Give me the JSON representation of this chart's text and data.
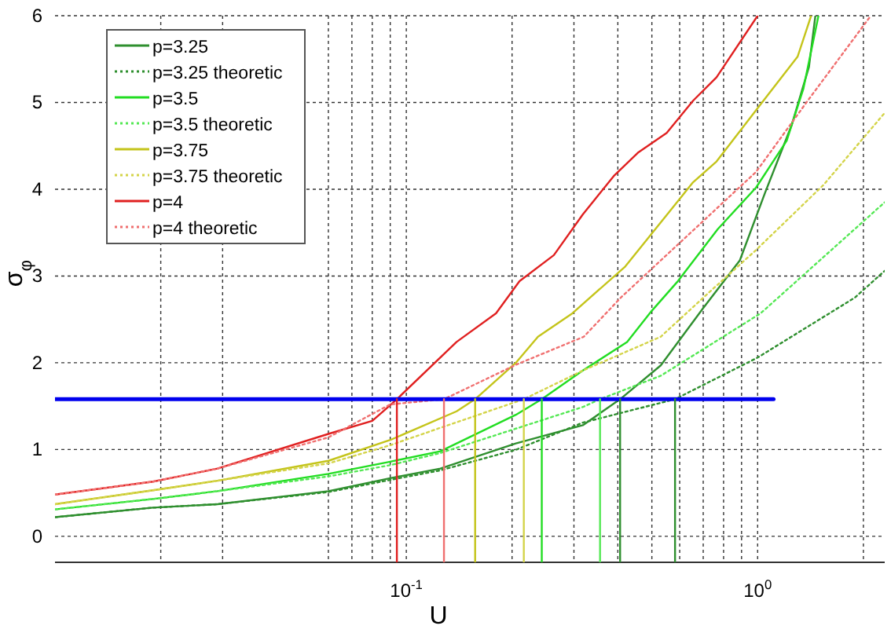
{
  "chart_data": {
    "type": "line",
    "xlabel": "U",
    "ylabel": "σ$_{φ}$",
    "log": "x",
    "grid": true,
    "legend": "top left",
    "xlim": [
      0.01,
      2.3
    ],
    "ylim": [
      -0.3,
      6
    ],
    "xticks": [
      {
        "value": 0.02,
        "label": null
      },
      {
        "value": 0.03,
        "label": null
      },
      {
        "value": 0.06,
        "label": null
      },
      {
        "value": 0.07,
        "label": null
      },
      {
        "value": 0.08,
        "label": null
      },
      {
        "value": 0.09,
        "label": null
      },
      {
        "value": 0.1,
        "label": "10$^{-1}$"
      },
      {
        "value": 0.2,
        "label": null
      },
      {
        "value": 0.3,
        "label": null
      },
      {
        "value": 0.4,
        "label": null
      },
      {
        "value": 0.5,
        "label": null
      },
      {
        "value": 0.6,
        "label": null
      },
      {
        "value": 0.7,
        "label": null
      },
      {
        "value": 0.8,
        "label": null
      },
      {
        "value": 0.9,
        "label": null
      },
      {
        "value": 1,
        "label": "10$^{0}$"
      },
      {
        "value": 2,
        "label": null
      }
    ],
    "yticks": [
      0,
      1,
      2,
      3,
      4,
      5,
      6
    ],
    "series": [
      {
        "name": "p=3.25",
        "color": "#2f8f2f",
        "line_style": "solid",
        "x": [
          0.01,
          0.019,
          0.029,
          0.06,
          0.09,
          0.125,
          0.205,
          0.318,
          0.406,
          0.53,
          0.7,
          0.89,
          1.05,
          1.25,
          1.4,
          1.46
        ],
        "values": [
          0.22,
          0.33,
          0.37,
          0.52,
          0.67,
          0.78,
          1.07,
          1.28,
          1.58,
          1.97,
          2.63,
          3.18,
          3.96,
          4.74,
          5.41,
          6.0
        ]
      },
      {
        "name": "p=3.25 theoretic",
        "color": "#2f8f2f",
        "line_style": "dotted",
        "x": [
          0.01,
          0.019,
          0.029,
          0.06,
          0.09,
          0.125,
          0.206,
          0.318,
          0.582,
          1.0,
          1.89,
          2.3
        ],
        "values": [
          0.22,
          0.33,
          0.37,
          0.51,
          0.65,
          0.76,
          1.0,
          1.31,
          1.58,
          2.06,
          2.75,
          3.06
        ]
      },
      {
        "name": "p=3.5",
        "color": "#22dd22",
        "line_style": "solid",
        "x": [
          0.01,
          0.019,
          0.029,
          0.06,
          0.09,
          0.125,
          0.205,
          0.243,
          0.318,
          0.425,
          0.5,
          0.59,
          0.77,
          0.99,
          1.21,
          1.35,
          1.49
        ],
        "values": [
          0.31,
          0.43,
          0.52,
          0.72,
          0.86,
          0.98,
          1.4,
          1.58,
          1.91,
          2.24,
          2.6,
          2.93,
          3.54,
          4.02,
          4.56,
          5.16,
          6.0
        ]
      },
      {
        "name": "p=3.5 theoretic",
        "color": "#55e855",
        "line_style": "dotted",
        "x": [
          0.01,
          0.019,
          0.029,
          0.06,
          0.09,
          0.125,
          0.318,
          0.356,
          0.53,
          1.02,
          2.3
        ],
        "values": [
          0.31,
          0.43,
          0.52,
          0.69,
          0.82,
          0.96,
          1.49,
          1.58,
          1.85,
          2.57,
          3.85
        ]
      },
      {
        "name": "p=3.75",
        "color": "#c4c41a",
        "line_style": "solid",
        "x": [
          0.01,
          0.019,
          0.029,
          0.06,
          0.09,
          0.139,
          0.157,
          0.205,
          0.237,
          0.297,
          0.42,
          0.655,
          0.764,
          1.02,
          1.3,
          1.42
        ],
        "values": [
          0.37,
          0.53,
          0.64,
          0.87,
          1.11,
          1.44,
          1.58,
          2.0,
          2.3,
          2.57,
          3.11,
          4.08,
          4.32,
          4.98,
          5.53,
          6.0
        ]
      },
      {
        "name": "p=3.75 theoretic",
        "color": "#d4d44a",
        "line_style": "dotted",
        "x": [
          0.01,
          0.019,
          0.029,
          0.06,
          0.09,
          0.125,
          0.216,
          0.318,
          0.53,
          0.7,
          0.99,
          1.54,
          2.3
        ],
        "values": [
          0.37,
          0.53,
          0.64,
          0.84,
          1.05,
          1.25,
          1.58,
          1.91,
          2.3,
          2.75,
          3.3,
          4.05,
          4.88
        ]
      },
      {
        "name": "p=4",
        "color": "#e02020",
        "line_style": "solid",
        "x": [
          0.01,
          0.019,
          0.029,
          0.06,
          0.08,
          0.087,
          0.094,
          0.139,
          0.18,
          0.21,
          0.263,
          0.318,
          0.391,
          0.456,
          0.551,
          0.655,
          0.764,
          1.0
        ],
        "values": [
          0.48,
          0.63,
          0.78,
          1.18,
          1.33,
          1.46,
          1.58,
          2.24,
          2.57,
          2.94,
          3.24,
          3.71,
          4.16,
          4.42,
          4.65,
          5.02,
          5.29,
          6.0
        ]
      },
      {
        "name": "p=4 theoretic",
        "color": "#f07070",
        "line_style": "dotted",
        "x": [
          0.01,
          0.019,
          0.029,
          0.06,
          0.09,
          0.128,
          0.206,
          0.32,
          0.41,
          0.99,
          1.4,
          2.1
        ],
        "values": [
          0.48,
          0.63,
          0.78,
          1.14,
          1.52,
          1.58,
          1.98,
          2.3,
          2.76,
          4.2,
          5.04,
          6.0
        ]
      },
      {
        "color": "#0000ee",
        "line_style": "solid",
        "x": [
          0.01,
          1.11
        ],
        "values": [
          1.58,
          1.58
        ]
      },
      {
        "color": "#e02020",
        "line_style": "solid",
        "x": [
          0.094,
          0.094
        ],
        "values": [
          -0.3,
          1.58
        ]
      },
      {
        "color": "#f07070",
        "line_style": "solid",
        "x": [
          0.128,
          0.128
        ],
        "values": [
          -0.3,
          1.58
        ]
      },
      {
        "color": "#c4c41a",
        "line_style": "solid",
        "x": [
          0.157,
          0.157
        ],
        "values": [
          -0.3,
          1.58
        ]
      },
      {
        "color": "#d4d44a",
        "line_style": "solid",
        "x": [
          0.216,
          0.216
        ],
        "values": [
          -0.3,
          1.58
        ]
      },
      {
        "color": "#22dd22",
        "line_style": "solid",
        "x": [
          0.243,
          0.243
        ],
        "values": [
          -0.3,
          1.58
        ]
      },
      {
        "color": "#55e855",
        "line_style": "solid",
        "x": [
          0.356,
          0.356
        ],
        "values": [
          -0.3,
          1.58
        ]
      },
      {
        "color": "#2f8f2f",
        "line_style": "solid",
        "x": [
          0.406,
          0.406
        ],
        "values": [
          -0.3,
          1.58
        ]
      },
      {
        "color": "#2f8f2f",
        "line_style": "solid",
        "x": [
          0.582,
          0.582
        ],
        "values": [
          -0.3,
          1.58
        ]
      }
    ]
  }
}
